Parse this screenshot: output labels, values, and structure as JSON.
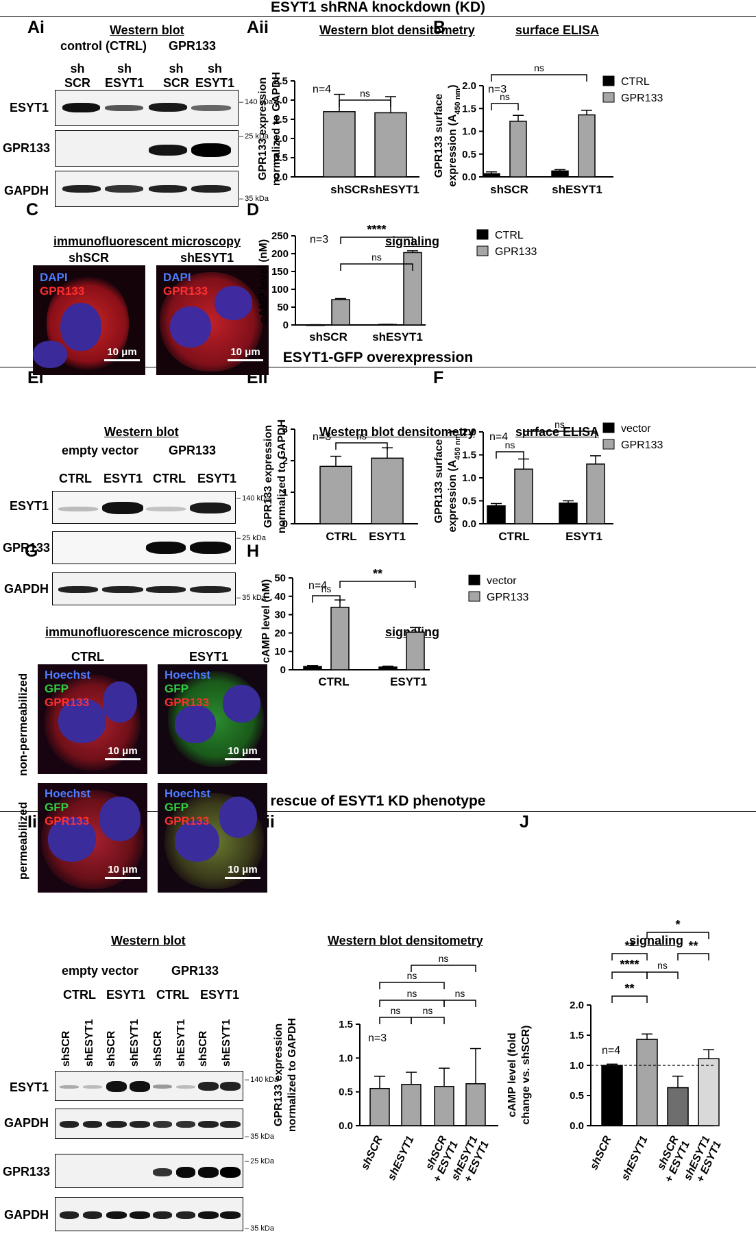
{
  "section_kd": "ESYT1 shRNA knockdown (KD)",
  "section_oe": "ESYT1-GFP overexpression",
  "section_rescue": "rescue of ESYT1 KD phenotype",
  "labels": {
    "ai": "Ai",
    "aii": "Aii",
    "b": "B",
    "c": "C",
    "d": "D",
    "ei": "Ei",
    "eii": "Eii",
    "f": "F",
    "g": "G",
    "h": "H",
    "ii": "Ii",
    "iii": "Iii",
    "j": "J"
  },
  "titles": {
    "ai": "Western blot",
    "aii": "Western blot densitometry",
    "b": "surface ELISA",
    "c": "immunofluorescent microscopy",
    "d": "signaling",
    "ei": "Western blot",
    "eii": "Western blot densitometry",
    "f": "surface ELISA",
    "g": "immunofluorescence microscopy",
    "h": "signaling",
    "ii": "Western blot",
    "iii": "Western blot densitometry",
    "j": "signaling"
  },
  "blot_a": {
    "groups": [
      "control (CTRL)",
      "GPR133"
    ],
    "lanes": [
      "sh\nSCR",
      "sh\nESYT1",
      "sh\nSCR",
      "sh\nESYT1"
    ],
    "rows": [
      "ESYT1",
      "GPR133",
      "GAPDH"
    ],
    "markers": [
      "140 kDa",
      "25 kDa",
      "35 kDa"
    ]
  },
  "blot_e": {
    "groups": [
      "empty vector",
      "GPR133"
    ],
    "lanes": [
      "CTRL",
      "ESYT1",
      "CTRL",
      "ESYT1"
    ],
    "rows": [
      "ESYT1",
      "GPR133",
      "GAPDH"
    ],
    "markers": [
      "140 kDa",
      "25 kDa",
      "35 kDa"
    ]
  },
  "blot_i": {
    "groups": [
      "empty vector",
      "GPR133"
    ],
    "subgroups": [
      "CTRL",
      "ESYT1",
      "CTRL",
      "ESYT1"
    ],
    "lanes": [
      "shSCR",
      "shESYT1",
      "shSCR",
      "shESYT1",
      "shSCR",
      "shESYT1",
      "shSCR",
      "shESYT1"
    ],
    "rows": [
      "ESYT1",
      "GAPDH",
      "GPR133",
      "GAPDH"
    ],
    "markers": [
      "140 kDa",
      "35 kDa",
      "25 kDa",
      "35 kDa"
    ]
  },
  "micro_c": {
    "cols": [
      "shSCR",
      "shESYT1"
    ],
    "stain1": "DAPI",
    "stain2": "GPR133",
    "scale": "10 μm"
  },
  "micro_g": {
    "cols": [
      "CTRL",
      "ESYT1"
    ],
    "rows": [
      "non-permeabilized",
      "permeabilized"
    ],
    "stain1": "Hoechst",
    "stain2": "GFP",
    "stain3": "GPR133",
    "scale": "10 μm"
  },
  "chart_data": [
    {
      "id": "Aii",
      "type": "bar",
      "categories": [
        "shSCR",
        "shESYT1"
      ],
      "values": [
        1.7,
        1.67
      ],
      "errors": [
        0.45,
        0.42
      ],
      "ylabel": "GPR133 expression\nnormalized to GAPDH",
      "ylim": [
        0,
        2.5
      ],
      "yticks": [
        "0.0",
        "0.5",
        "1.0",
        "1.5",
        "2.0",
        "2.5"
      ],
      "n": "n=4",
      "sig": [
        {
          "a": 0,
          "b": 1,
          "label": "ns"
        }
      ]
    },
    {
      "id": "B",
      "type": "bar",
      "categories": [
        "shSCR",
        "shESYT1"
      ],
      "series": [
        {
          "name": "CTRL",
          "values": [
            0.07,
            0.13
          ],
          "errors": [
            0.04,
            0.03
          ],
          "color": "#000000"
        },
        {
          "name": "GPR133",
          "values": [
            1.22,
            1.36
          ],
          "errors": [
            0.13,
            0.1
          ],
          "color": "#a6a6a6"
        }
      ],
      "ylabel": "GPR133 surface\nexpression (A450 nm)",
      "ylim": [
        0,
        2.0
      ],
      "yticks": [
        "0.0",
        "0.5",
        "1.0",
        "1.5",
        "2.0"
      ],
      "n": "n=3",
      "legend": "top-right",
      "sig": [
        {
          "label": "ns"
        },
        {
          "label": "ns"
        }
      ]
    },
    {
      "id": "D",
      "type": "bar",
      "categories": [
        "shSCR",
        "shESYT1"
      ],
      "series": [
        {
          "name": "CTRL",
          "values": [
            0.5,
            1.5
          ],
          "errors": [
            0.3,
            0.3
          ],
          "color": "#000000"
        },
        {
          "name": "GPR133",
          "values": [
            71,
            203
          ],
          "errors": [
            3,
            5
          ],
          "color": "#a6a6a6"
        }
      ],
      "ylabel": "cAMP level (nM)",
      "ylim": [
        0,
        250
      ],
      "yticks": [
        "0",
        "50",
        "100",
        "150",
        "200",
        "250"
      ],
      "n": "n=3",
      "legend": "top-right",
      "sig": [
        {
          "label": "ns"
        },
        {
          "label": "****"
        }
      ]
    },
    {
      "id": "Eii",
      "type": "bar",
      "categories": [
        "CTRL",
        "ESYT1"
      ],
      "values": [
        1.82,
        2.08
      ],
      "errors": [
        0.32,
        0.33
      ],
      "ylabel": "GPR133 expression\nnormalized to GAPDH",
      "ylim": [
        0,
        3
      ],
      "yticks": [
        "0",
        "1",
        "2",
        "3"
      ],
      "n": "n=3",
      "sig": [
        {
          "label": "ns"
        }
      ]
    },
    {
      "id": "F",
      "type": "bar",
      "categories": [
        "CTRL",
        "ESYT1"
      ],
      "series": [
        {
          "name": "vector",
          "values": [
            0.39,
            0.45
          ],
          "errors": [
            0.05,
            0.05
          ],
          "color": "#000000"
        },
        {
          "name": "GPR133",
          "values": [
            1.19,
            1.3
          ],
          "errors": [
            0.22,
            0.18
          ],
          "color": "#a6a6a6"
        }
      ],
      "ylabel": "GPR133 surface\nexpression (A450 nm)",
      "ylim": [
        0,
        2.0
      ],
      "yticks": [
        "0.0",
        "0.5",
        "1.0",
        "1.5",
        "2.0"
      ],
      "n": "n=4",
      "legend": "top-right",
      "sig": [
        {
          "label": "ns"
        },
        {
          "label": "ns"
        }
      ]
    },
    {
      "id": "H",
      "type": "bar",
      "categories": [
        "CTRL",
        "ESYT1"
      ],
      "series": [
        {
          "name": "vector",
          "values": [
            1.8,
            1.5
          ],
          "errors": [
            0.5,
            0.5
          ],
          "color": "#000000"
        },
        {
          "name": "GPR133",
          "values": [
            34,
            20.5
          ],
          "errors": [
            4,
            2.5
          ],
          "color": "#a6a6a6"
        }
      ],
      "ylabel": "cAMP level (nM)",
      "ylim": [
        0,
        50
      ],
      "yticks": [
        "0",
        "10",
        "20",
        "30",
        "40",
        "50"
      ],
      "n": "n=4",
      "legend": "top-right",
      "sig": [
        {
          "label": "ns"
        },
        {
          "label": "**"
        }
      ]
    },
    {
      "id": "Iii",
      "type": "bar",
      "categories": [
        "shSCR",
        "shESYT1",
        "shSCR\n+ ESYT1",
        "shESYT1\n+ ESYT1"
      ],
      "values": [
        0.55,
        0.61,
        0.58,
        0.62
      ],
      "errors": [
        0.18,
        0.18,
        0.27,
        0.52
      ],
      "ylabel": "GPR133 expression\nnormalized to GAPDH",
      "ylim": [
        0,
        1.5
      ],
      "yticks": [
        "0.0",
        "0.5",
        "1.0",
        "1.5"
      ],
      "n": "n=3",
      "sig": [
        {
          "label": "ns"
        },
        {
          "label": "ns"
        },
        {
          "label": "ns"
        },
        {
          "label": "ns"
        },
        {
          "label": "ns"
        },
        {
          "label": "ns"
        }
      ]
    },
    {
      "id": "J",
      "type": "bar",
      "categories": [
        "shSCR",
        "shESYT1",
        "shSCR\n+ ESYT1",
        "shESYT1\n+ ESYT1"
      ],
      "values": [
        1.0,
        1.43,
        0.63,
        1.11
      ],
      "errors": [
        0.02,
        0.09,
        0.19,
        0.15
      ],
      "colors": [
        "#000000",
        "#a6a6a6",
        "#6e6e6e",
        "#d9d9d9"
      ],
      "ylabel": "cAMP level (fold\nchange vs. shSCR)",
      "ylim": [
        0,
        2.0
      ],
      "yticks": [
        "0.0",
        "0.5",
        "1.0",
        "1.5",
        "2.0"
      ],
      "n": "n=4",
      "reference_line": 1.0,
      "sig": [
        {
          "label": "**"
        },
        {
          "label": "****"
        },
        {
          "label": "ns"
        },
        {
          "label": "**"
        },
        {
          "label": "**"
        },
        {
          "label": "*"
        }
      ]
    }
  ]
}
